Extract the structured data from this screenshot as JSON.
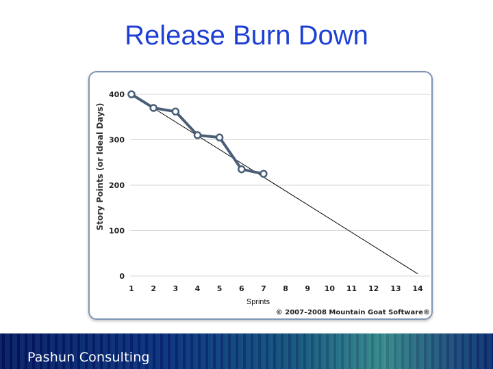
{
  "slide": {
    "title": "Release Burn Down",
    "footer_brand": "Pashun Consulting",
    "copyright": "© 2007–2008 Mountain Goat Software®"
  },
  "chart_data": {
    "type": "line",
    "title": "",
    "xlabel": "Sprints",
    "ylabel": "Story Points (or Ideal Days)",
    "x": [
      1,
      2,
      3,
      4,
      5,
      6,
      7
    ],
    "series": [
      {
        "values": [
          400,
          370,
          362,
          310,
          305,
          235,
          225
        ]
      }
    ],
    "trend_line": {
      "from": [
        1,
        400
      ],
      "to": [
        14,
        5
      ]
    },
    "x_ticks": [
      1,
      2,
      3,
      4,
      5,
      6,
      7,
      8,
      9,
      10,
      11,
      12,
      13,
      14
    ],
    "y_ticks": [
      0,
      100,
      200,
      300,
      400
    ],
    "xlim": [
      1,
      14
    ],
    "ylim": [
      0,
      400
    ],
    "grid": true,
    "colors": {
      "series": "#4a5e78",
      "trend": "#000000",
      "grid": "#d4d4d4"
    }
  }
}
